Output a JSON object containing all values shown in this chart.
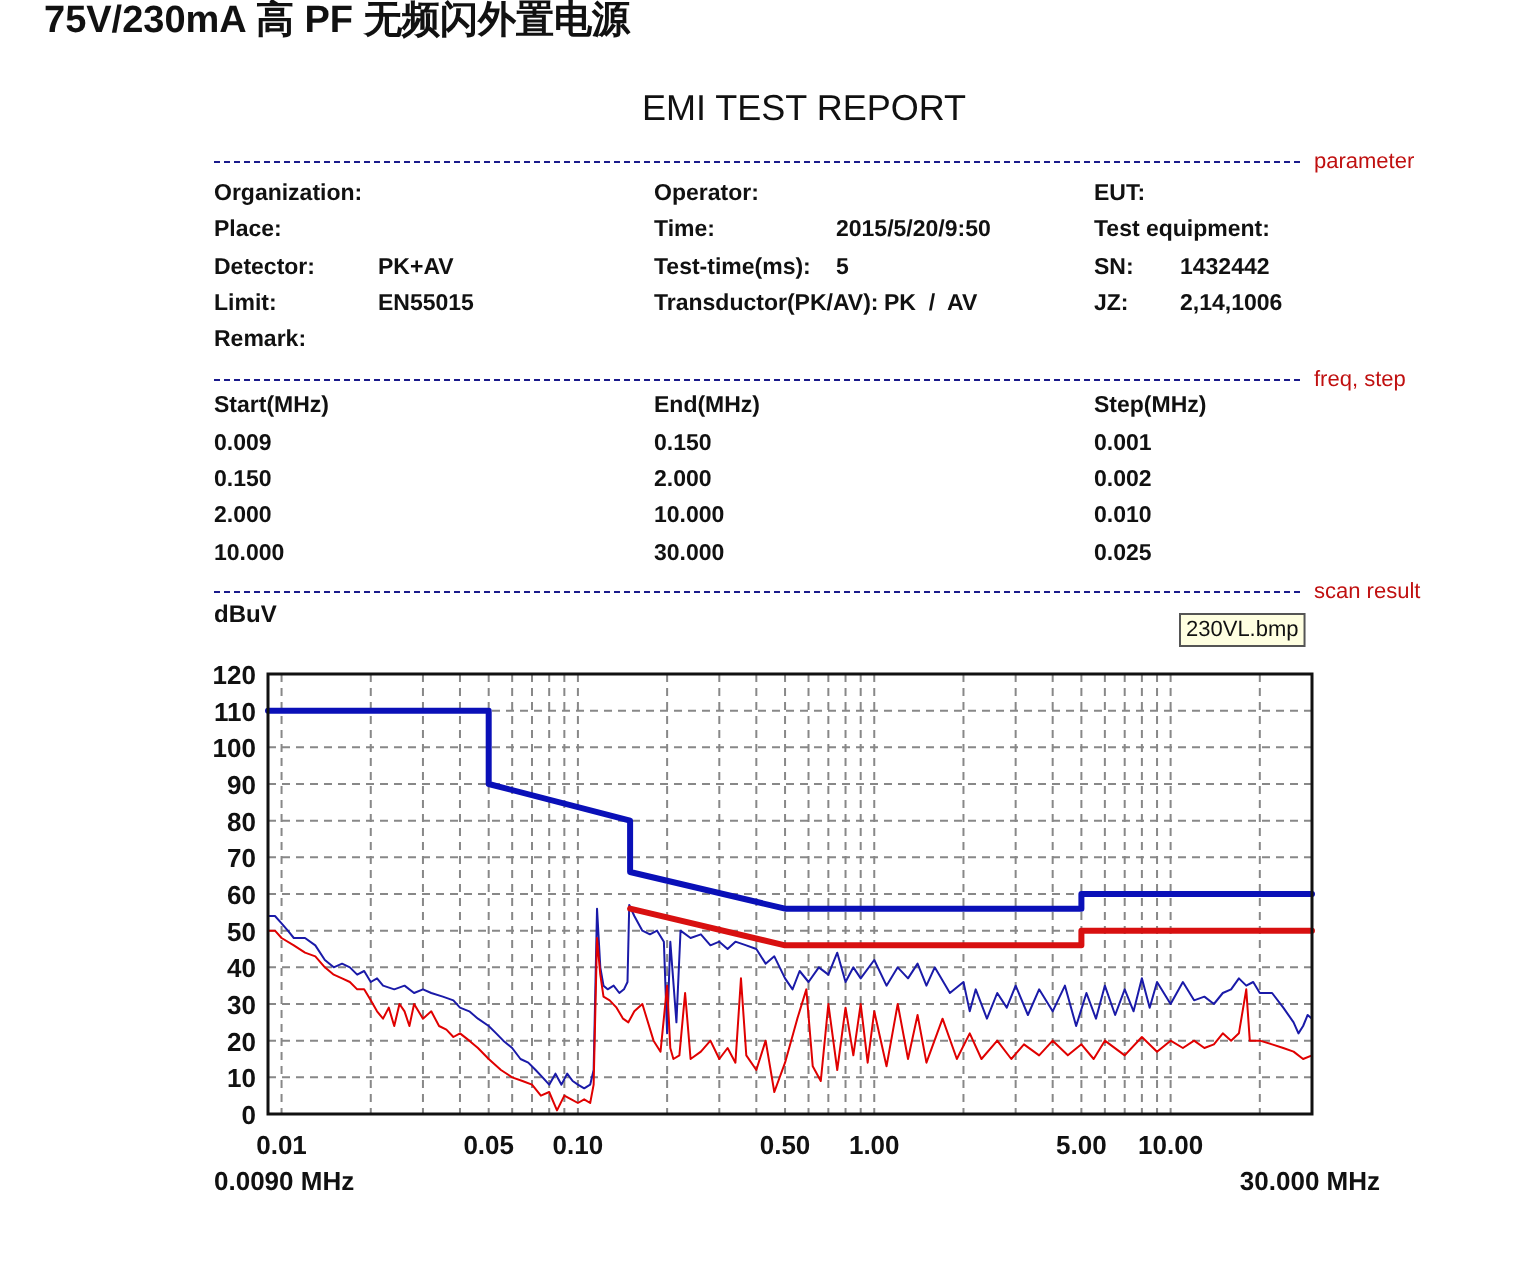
{
  "chart_data": [
    {
      "type": "other",
      "title": "75V/230mA 高 PF 无频闪外置电源",
      "subtitle": "EMI TEST REPORT",
      "annotations": [
        "parameter",
        "Organization:",
        "Operator:",
        "EUT:",
        "Place:",
        "Time:",
        "2015/5/20/9:50",
        "Test equipment:",
        "Detector:",
        "PK+AV",
        "Test-time(ms):",
        "5",
        "SN:",
        "1432442",
        "Limit:",
        "EN55015",
        "Transductor(PK/AV):",
        "PK  /  AV",
        "JZ:",
        "2,14,1006",
        "Remark:",
        "freq, step",
        "Start(MHz)",
        "End(MHz)",
        "Step(MHz)",
        "0.009",
        "0.150",
        "0.001",
        "0.150",
        "2.000",
        "0.002",
        "2.000",
        "10.000",
        "0.010",
        "10.000",
        "30.000",
        "0.025",
        "scan result",
        "230VL.bmp"
      ]
    },
    {
      "type": "line",
      "ylabel": "dBuV",
      "log": "x",
      "grid": true,
      "line_style": "solid",
      "marker": "none",
      "xlim": [
        0.009,
        30
      ],
      "ylim": [
        0,
        120
      ],
      "yticks": [
        0,
        10,
        20,
        30,
        40,
        50,
        60,
        70,
        80,
        90,
        100,
        110,
        120
      ],
      "xticks": [
        {
          "value": 0.01,
          "label": "0.01"
        },
        {
          "value": 0.02,
          "label": null
        },
        {
          "value": 0.03,
          "label": null
        },
        {
          "value": 0.04,
          "label": null
        },
        {
          "value": 0.05,
          "label": "0.05"
        },
        {
          "value": 0.06,
          "label": null
        },
        {
          "value": 0.07,
          "label": null
        },
        {
          "value": 0.08,
          "label": null
        },
        {
          "value": 0.09,
          "label": null
        },
        {
          "value": 0.1,
          "label": "0.10"
        },
        {
          "value": 0.2,
          "label": null
        },
        {
          "value": 0.3,
          "label": null
        },
        {
          "value": 0.4,
          "label": null
        },
        {
          "value": 0.5,
          "label": "0.50"
        },
        {
          "value": 0.6,
          "label": null
        },
        {
          "value": 0.7,
          "label": null
        },
        {
          "value": 0.8,
          "label": null
        },
        {
          "value": 0.9,
          "label": null
        },
        {
          "value": 1,
          "label": "1.00"
        },
        {
          "value": 2,
          "label": null
        },
        {
          "value": 3,
          "label": null
        },
        {
          "value": 4,
          "label": null
        },
        {
          "value": 5,
          "label": "5.00"
        },
        {
          "value": 6,
          "label": null
        },
        {
          "value": 7,
          "label": null
        },
        {
          "value": 8,
          "label": null
        },
        {
          "value": 9,
          "label": null
        },
        {
          "value": 10,
          "label": "10.00"
        },
        {
          "value": 20,
          "label": null
        }
      ],
      "annotations": [
        "0.0090 MHz",
        "30.000 MHz"
      ],
      "series": [
        {
          "color": "#1a1aa8",
          "x": [
            0.009,
            0.0095,
            0.01,
            0.0105,
            0.011,
            0.012,
            0.013,
            0.014,
            0.015,
            0.016,
            0.017,
            0.018,
            0.019,
            0.02,
            0.021,
            0.022,
            0.024,
            0.026,
            0.028,
            0.03,
            0.032,
            0.035,
            0.038,
            0.04,
            0.043,
            0.046,
            0.05,
            0.053,
            0.056,
            0.06,
            0.064,
            0.068,
            0.072,
            0.076,
            0.08,
            0.084,
            0.088,
            0.092,
            0.096,
            0.1,
            0.105,
            0.11,
            0.113,
            0.116,
            0.119,
            0.122,
            0.126,
            0.132,
            0.138,
            0.143,
            0.147,
            0.149,
            0.155,
            0.165,
            0.175,
            0.185,
            0.195,
            0.2,
            0.205,
            0.215,
            0.222,
            0.24,
            0.26,
            0.28,
            0.3,
            0.32,
            0.34,
            0.37,
            0.4,
            0.43,
            0.46,
            0.5,
            0.53,
            0.56,
            0.6,
            0.65,
            0.7,
            0.75,
            0.8,
            0.85,
            0.9,
            1,
            1.1,
            1.2,
            1.3,
            1.4,
            1.5,
            1.6,
            1.8,
            2,
            2.1,
            2.2,
            2.4,
            2.6,
            2.8,
            3,
            3.3,
            3.6,
            4,
            4.4,
            4.8,
            5.2,
            5.6,
            6,
            6.5,
            7,
            7.5,
            8,
            8.5,
            9,
            10,
            11,
            12,
            13,
            14,
            15,
            16,
            17,
            18,
            19,
            20,
            22,
            24,
            26,
            27,
            28,
            29,
            30
          ],
          "values": [
            54,
            54,
            52,
            50,
            48,
            48,
            46,
            42,
            40,
            41,
            40,
            38,
            39,
            36,
            37,
            35,
            34,
            35,
            33,
            34,
            33,
            32,
            31,
            29,
            28,
            26,
            24,
            22,
            20,
            18,
            15,
            14,
            12,
            10,
            8,
            11,
            8,
            11,
            9,
            8,
            7,
            8,
            12,
            56,
            40,
            35,
            34,
            35,
            33,
            34,
            36,
            57,
            54,
            50,
            49,
            50,
            47,
            22,
            47,
            25,
            50,
            48,
            49,
            46,
            47,
            45,
            47,
            46,
            45,
            41,
            43,
            37,
            34,
            39,
            36,
            40,
            38,
            44,
            36,
            40,
            37,
            42,
            35,
            40,
            37,
            41,
            35,
            40,
            33,
            36,
            28,
            34,
            26,
            33,
            29,
            35,
            27,
            34,
            28,
            35,
            24,
            33,
            26,
            35,
            27,
            34,
            28,
            37,
            29,
            36,
            30,
            36,
            31,
            32,
            30,
            33,
            34,
            37,
            35,
            36,
            33,
            33,
            29,
            25,
            22,
            24,
            27,
            26
          ]
        },
        {
          "color": "#e00000",
          "x": [
            0.009,
            0.0095,
            0.01,
            0.011,
            0.012,
            0.013,
            0.014,
            0.015,
            0.016,
            0.017,
            0.018,
            0.019,
            0.02,
            0.021,
            0.022,
            0.023,
            0.024,
            0.025,
            0.026,
            0.027,
            0.028,
            0.03,
            0.032,
            0.034,
            0.036,
            0.038,
            0.04,
            0.043,
            0.046,
            0.05,
            0.055,
            0.06,
            0.065,
            0.07,
            0.075,
            0.08,
            0.085,
            0.09,
            0.095,
            0.1,
            0.105,
            0.11,
            0.113,
            0.116,
            0.119,
            0.122,
            0.128,
            0.135,
            0.142,
            0.148,
            0.155,
            0.165,
            0.18,
            0.19,
            0.2,
            0.205,
            0.21,
            0.22,
            0.23,
            0.24,
            0.26,
            0.28,
            0.3,
            0.32,
            0.34,
            0.355,
            0.37,
            0.4,
            0.43,
            0.46,
            0.5,
            0.55,
            0.59,
            0.62,
            0.66,
            0.7,
            0.75,
            0.8,
            0.85,
            0.9,
            0.95,
            1,
            1.1,
            1.2,
            1.3,
            1.4,
            1.5,
            1.7,
            1.9,
            2.1,
            2.3,
            2.6,
            2.9,
            3.2,
            3.6,
            4,
            4.5,
            5,
            5.5,
            6,
            7,
            8,
            9,
            10,
            11,
            12,
            13,
            14,
            15,
            16,
            17,
            18,
            18.5,
            20,
            22,
            24,
            26,
            28,
            30
          ],
          "values": [
            50,
            50,
            48,
            46,
            44,
            43,
            40,
            38,
            37,
            36,
            34,
            34,
            31,
            28,
            26,
            29,
            24,
            30,
            28,
            24,
            30,
            26,
            28,
            24,
            23,
            21,
            22,
            20,
            18,
            15,
            12,
            10,
            9,
            8,
            5,
            6,
            1,
            5,
            4,
            3,
            4,
            3,
            8,
            48,
            38,
            32,
            31,
            29,
            26,
            25,
            28,
            30,
            20,
            17,
            35,
            18,
            15,
            16,
            33,
            15,
            17,
            20,
            15,
            18,
            14,
            37,
            16,
            12,
            20,
            6,
            14,
            26,
            34,
            13,
            9,
            30,
            12,
            29,
            16,
            30,
            14,
            28,
            13,
            30,
            15,
            27,
            14,
            26,
            15,
            22,
            15,
            20,
            15,
            19,
            16,
            20,
            16,
            19,
            15,
            20,
            16,
            21,
            17,
            20,
            18,
            20,
            18,
            19,
            22,
            20,
            22,
            34,
            20,
            20,
            19,
            18,
            17,
            15,
            16
          ]
        },
        {
          "color": "#0a10b8",
          "x": [
            0.009,
            0.05,
            0.05,
            0.15,
            0.15,
            0.5,
            5,
            5,
            30
          ],
          "values": [
            110,
            110,
            90,
            80,
            66,
            56,
            56,
            60,
            60
          ]
        },
        {
          "color": "#d81010",
          "x": [
            0.15,
            0.5,
            5,
            5,
            30
          ],
          "values": [
            56,
            46,
            46,
            50,
            50
          ]
        }
      ]
    }
  ]
}
